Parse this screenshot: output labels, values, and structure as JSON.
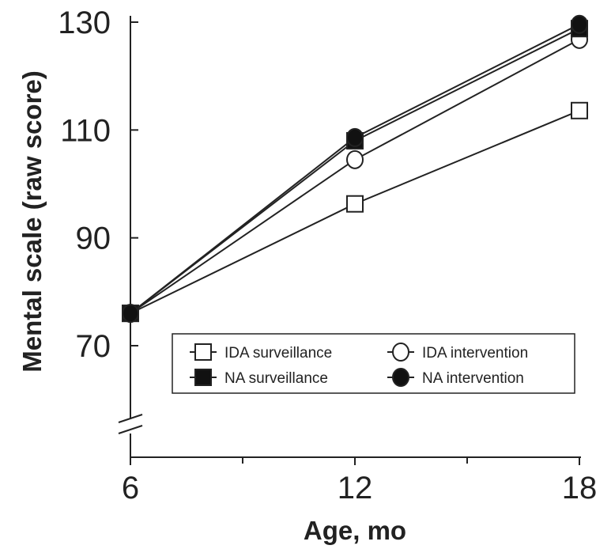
{
  "chart_data": {
    "type": "line",
    "xlabel": "Age, mo",
    "ylabel": "Mental scale (raw score)",
    "x": [
      6,
      12,
      18
    ],
    "x_ticks": [
      "6",
      "12",
      "18"
    ],
    "x_minor_ticks": [
      9,
      15
    ],
    "y_ticks": [
      "70",
      "90",
      "110",
      "130"
    ],
    "ylim": [
      70,
      130
    ],
    "axis_break": "y-axis below 70",
    "legend_placement": "lower-right",
    "series": [
      {
        "name": "IDA surveillance",
        "marker": "square-open",
        "values": [
          76,
          96.3,
          113.6
        ]
      },
      {
        "name": "IDA intervention",
        "marker": "circle-open",
        "values": [
          76,
          104.5,
          126.8
        ]
      },
      {
        "name": "NA surveillance",
        "marker": "square-filled",
        "values": [
          76,
          108,
          128.8
        ]
      },
      {
        "name": "NA intervention",
        "marker": "circle-filled",
        "values": [
          76,
          108.6,
          129.6
        ]
      }
    ]
  }
}
